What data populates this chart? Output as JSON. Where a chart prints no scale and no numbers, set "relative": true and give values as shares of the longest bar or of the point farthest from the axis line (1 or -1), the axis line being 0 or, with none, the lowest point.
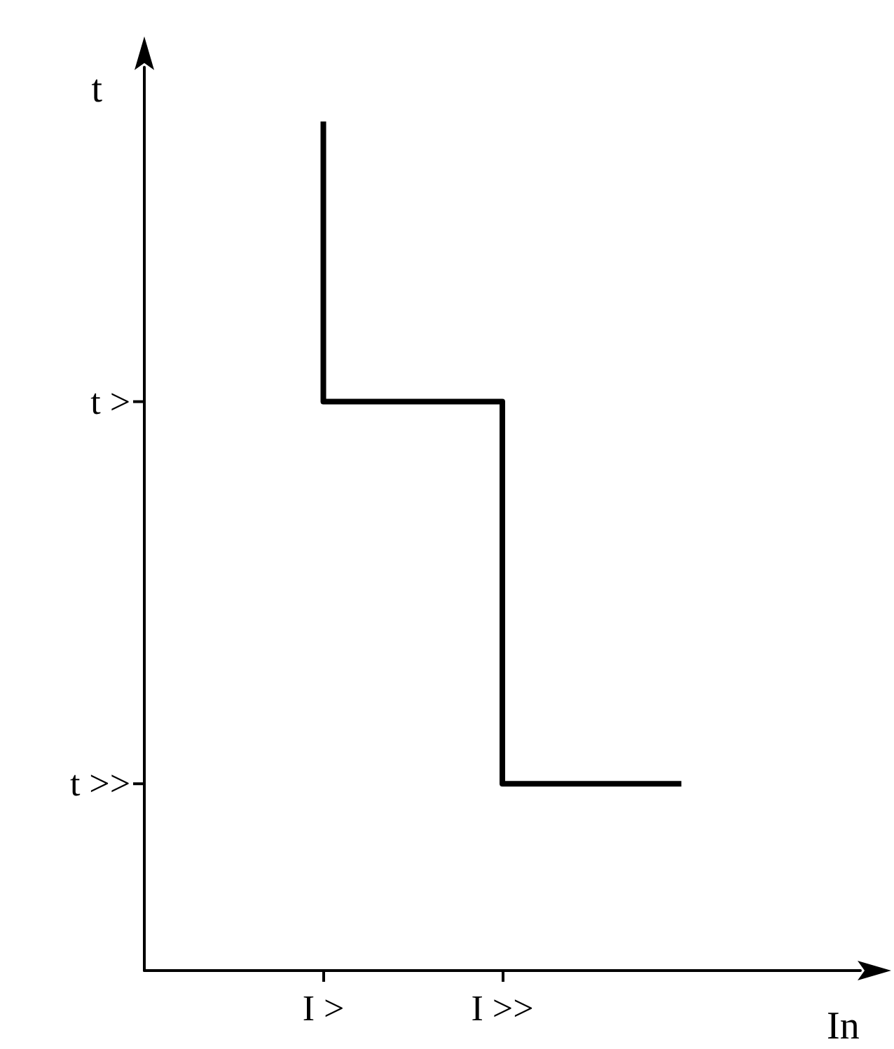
{
  "chart_data": {
    "type": "step",
    "xlabel": "In",
    "ylabel": "t",
    "relative": true,
    "categories": [
      null,
      "I >",
      "I >>",
      null,
      null
    ],
    "series": [
      {
        "color": "#000000",
        "values": [
          null,
          1,
          0.67,
          0.22,
          null
        ]
      }
    ],
    "annotations": [
      "t >",
      "t >>"
    ],
    "grid": false,
    "marker": "none",
    "line_style": "solid"
  }
}
